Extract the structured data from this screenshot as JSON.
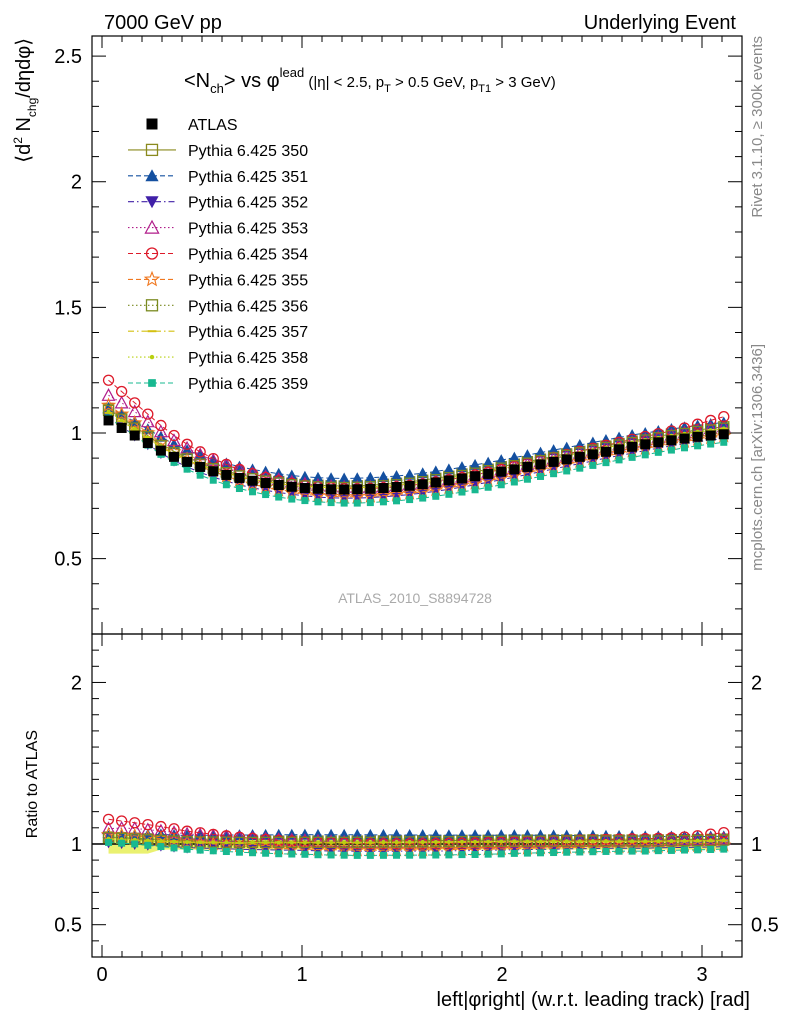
{
  "header": {
    "left": "7000 GeV pp",
    "right": "Underlying Event"
  },
  "side_labels": {
    "rivet": "Rivet 3.1.10, ≥ 300k events",
    "mcplots": "mcplots.cern.ch [arXiv:1306.3436]"
  },
  "chart_data": [
    {
      "type": "scatter",
      "title": "<N_ch> vs φ^lead (|η| < 2.5, p_T > 0.5 GeV, p_T1 > 3 GeV)",
      "ylabel": "⟨d² N_chg/dηdφ⟩",
      "xlabel": "left|φright| (w.r.t. leading track) [rad]",
      "xlim": [
        -0.05,
        3.2
      ],
      "ylim": [
        0.2,
        2.58
      ],
      "yticks": [
        0.5,
        1,
        1.5,
        2,
        2.5
      ],
      "xticks": [
        0,
        1,
        2,
        3
      ],
      "watermark": "ATLAS_2010_S8894728",
      "legend_placement": "top-left",
      "x": [
        0.0327,
        0.0982,
        0.1636,
        0.2291,
        0.2945,
        0.36,
        0.4254,
        0.4909,
        0.5563,
        0.6218,
        0.6872,
        0.7527,
        0.8181,
        0.8836,
        0.949,
        1.0145,
        1.0799,
        1.1454,
        1.2108,
        1.2763,
        1.3417,
        1.4072,
        1.4726,
        1.5381,
        1.6035,
        1.669,
        1.7344,
        1.7999,
        1.8653,
        1.9308,
        1.9962,
        2.0617,
        2.1271,
        2.1926,
        2.258,
        2.3235,
        2.3889,
        2.4544,
        2.5198,
        2.5853,
        2.6507,
        2.7162,
        2.7816,
        2.8471,
        2.9125,
        2.978,
        3.0434,
        3.1089
      ],
      "series": [
        {
          "name": "ATLAS",
          "color": "#000000",
          "marker": "square-filled",
          "dash": "none",
          "values": [
            1.05,
            1.02,
            0.99,
            0.96,
            0.93,
            0.905,
            0.885,
            0.865,
            0.848,
            0.833,
            0.821,
            0.81,
            0.801,
            0.793,
            0.786,
            0.781,
            0.778,
            0.776,
            0.775,
            0.776,
            0.778,
            0.781,
            0.785,
            0.79,
            0.796,
            0.803,
            0.811,
            0.819,
            0.828,
            0.837,
            0.846,
            0.855,
            0.865,
            0.875,
            0.885,
            0.895,
            0.905,
            0.915,
            0.925,
            0.935,
            0.945,
            0.955,
            0.963,
            0.971,
            0.978,
            0.985,
            0.99,
            0.995
          ]
        },
        {
          "name": "Pythia 6.425 350",
          "color": "#8a8a1e",
          "marker": "square-open",
          "dash": "solid",
          "values": [
            1.095,
            1.06,
            1.025,
            0.99,
            0.955,
            0.927,
            0.903,
            0.882,
            0.864,
            0.848,
            0.835,
            0.824,
            0.815,
            0.807,
            0.8,
            0.795,
            0.792,
            0.79,
            0.789,
            0.79,
            0.792,
            0.796,
            0.8,
            0.806,
            0.812,
            0.82,
            0.828,
            0.837,
            0.846,
            0.856,
            0.866,
            0.876,
            0.886,
            0.896,
            0.907,
            0.917,
            0.927,
            0.938,
            0.948,
            0.958,
            0.968,
            0.978,
            0.987,
            0.996,
            1.004,
            1.012,
            1.018,
            1.025
          ]
        },
        {
          "name": "Pythia 6.425 351",
          "color": "#1450a0",
          "marker": "triangle-up-filled",
          "dash": "dashed",
          "values": [
            1.1,
            1.075,
            1.045,
            1.015,
            0.985,
            0.955,
            0.932,
            0.912,
            0.894,
            0.879,
            0.866,
            0.855,
            0.846,
            0.838,
            0.831,
            0.826,
            0.822,
            0.82,
            0.819,
            0.82,
            0.822,
            0.825,
            0.829,
            0.834,
            0.84,
            0.847,
            0.855,
            0.864,
            0.873,
            0.882,
            0.892,
            0.902,
            0.912,
            0.922,
            0.932,
            0.942,
            0.952,
            0.962,
            0.972,
            0.982,
            0.992,
            1.0,
            1.008,
            1.016,
            1.023,
            1.03,
            1.036,
            1.042
          ]
        },
        {
          "name": "Pythia 6.425 352",
          "color": "#4020a8",
          "marker": "triangle-down-filled",
          "dash": "dashdot",
          "values": [
            1.06,
            1.025,
            0.99,
            0.955,
            0.92,
            0.89,
            0.865,
            0.843,
            0.824,
            0.808,
            0.794,
            0.782,
            0.772,
            0.763,
            0.756,
            0.75,
            0.745,
            0.742,
            0.741,
            0.741,
            0.743,
            0.746,
            0.75,
            0.755,
            0.761,
            0.768,
            0.776,
            0.785,
            0.794,
            0.804,
            0.814,
            0.824,
            0.835,
            0.846,
            0.857,
            0.868,
            0.878,
            0.889,
            0.9,
            0.91,
            0.92,
            0.93,
            0.94,
            0.949,
            0.957,
            0.965,
            0.972,
            0.978
          ]
        },
        {
          "name": "Pythia 6.425 353",
          "color": "#b01c8a",
          "marker": "triangle-up-open",
          "dash": "dotted",
          "values": [
            1.15,
            1.12,
            1.085,
            1.045,
            1.005,
            0.97,
            0.94,
            0.914,
            0.891,
            0.871,
            0.854,
            0.839,
            0.826,
            0.815,
            0.806,
            0.798,
            0.792,
            0.788,
            0.785,
            0.784,
            0.785,
            0.787,
            0.791,
            0.796,
            0.801,
            0.808,
            0.816,
            0.825,
            0.834,
            0.844,
            0.854,
            0.865,
            0.876,
            0.887,
            0.898,
            0.909,
            0.92,
            0.931,
            0.942,
            0.953,
            0.963,
            0.973,
            0.983,
            0.992,
            1.001,
            1.01,
            1.018,
            1.025
          ]
        },
        {
          "name": "Pythia 6.425 354",
          "color": "#dd1a2a",
          "marker": "circle-open",
          "dash": "dashed",
          "values": [
            1.21,
            1.165,
            1.12,
            1.075,
            1.03,
            0.99,
            0.955,
            0.925,
            0.898,
            0.875,
            0.855,
            0.838,
            0.823,
            0.81,
            0.8,
            0.792,
            0.786,
            0.782,
            0.779,
            0.778,
            0.779,
            0.782,
            0.786,
            0.791,
            0.797,
            0.805,
            0.814,
            0.823,
            0.833,
            0.844,
            0.855,
            0.867,
            0.879,
            0.891,
            0.903,
            0.915,
            0.927,
            0.939,
            0.951,
            0.963,
            0.975,
            0.986,
            0.997,
            1.008,
            1.02,
            1.035,
            1.05,
            1.065
          ]
        },
        {
          "name": "Pythia 6.425 355",
          "color": "#f07820",
          "marker": "star-open",
          "dash": "dashed",
          "values": [
            1.11,
            1.075,
            1.04,
            1.0,
            0.96,
            0.925,
            0.895,
            0.87,
            0.848,
            0.828,
            0.811,
            0.796,
            0.783,
            0.772,
            0.763,
            0.756,
            0.751,
            0.748,
            0.746,
            0.746,
            0.748,
            0.751,
            0.755,
            0.76,
            0.766,
            0.774,
            0.782,
            0.791,
            0.8,
            0.81,
            0.82,
            0.831,
            0.842,
            0.853,
            0.864,
            0.875,
            0.886,
            0.897,
            0.908,
            0.918,
            0.928,
            0.938,
            0.948,
            0.957,
            0.966,
            0.974,
            0.981,
            0.988
          ]
        },
        {
          "name": "Pythia 6.425 356",
          "color": "#7a8a20",
          "marker": "square-open",
          "dash": "dotted",
          "values": [
            1.09,
            1.055,
            1.02,
            0.985,
            0.95,
            0.921,
            0.897,
            0.876,
            0.858,
            0.842,
            0.829,
            0.818,
            0.809,
            0.801,
            0.794,
            0.789,
            0.786,
            0.784,
            0.783,
            0.784,
            0.786,
            0.79,
            0.794,
            0.8,
            0.806,
            0.814,
            0.822,
            0.831,
            0.84,
            0.85,
            0.86,
            0.87,
            0.88,
            0.89,
            0.901,
            0.911,
            0.921,
            0.932,
            0.942,
            0.952,
            0.962,
            0.972,
            0.981,
            0.99,
            0.998,
            1.006,
            1.012,
            1.019
          ]
        },
        {
          "name": "Pythia 6.425 357",
          "color": "#d4c010",
          "marker": "tick",
          "dash": "dashdot",
          "values": [
            1.08,
            1.047,
            1.013,
            0.978,
            0.944,
            0.916,
            0.893,
            0.872,
            0.855,
            0.839,
            0.826,
            0.816,
            0.807,
            0.799,
            0.792,
            0.787,
            0.784,
            0.782,
            0.781,
            0.782,
            0.784,
            0.788,
            0.792,
            0.798,
            0.804,
            0.812,
            0.82,
            0.829,
            0.838,
            0.848,
            0.858,
            0.868,
            0.878,
            0.888,
            0.899,
            0.909,
            0.919,
            0.93,
            0.94,
            0.95,
            0.96,
            0.97,
            0.979,
            0.988,
            0.996,
            1.004,
            1.01,
            1.017
          ]
        },
        {
          "name": "Pythia 6.425 358",
          "color": "#b8d010",
          "marker": "dot",
          "dash": "dotted",
          "values": [
            1.085,
            1.05,
            1.016,
            0.981,
            0.947,
            0.919,
            0.895,
            0.874,
            0.857,
            0.841,
            0.828,
            0.817,
            0.808,
            0.8,
            0.793,
            0.788,
            0.785,
            0.783,
            0.782,
            0.783,
            0.785,
            0.789,
            0.793,
            0.799,
            0.805,
            0.813,
            0.821,
            0.83,
            0.839,
            0.849,
            0.859,
            0.869,
            0.879,
            0.889,
            0.9,
            0.91,
            0.92,
            0.931,
            0.941,
            0.951,
            0.961,
            0.971,
            0.98,
            0.989,
            0.997,
            1.005,
            1.011,
            1.018
          ]
        },
        {
          "name": "Pythia 6.425 359",
          "color": "#18b890",
          "marker": "square-filled-small",
          "dash": "dashed",
          "values": [
            1.06,
            1.025,
            0.99,
            0.952,
            0.915,
            0.883,
            0.856,
            0.832,
            0.812,
            0.794,
            0.779,
            0.766,
            0.755,
            0.745,
            0.737,
            0.731,
            0.726,
            0.723,
            0.721,
            0.721,
            0.723,
            0.726,
            0.73,
            0.735,
            0.741,
            0.748,
            0.756,
            0.765,
            0.774,
            0.784,
            0.794,
            0.805,
            0.816,
            0.827,
            0.838,
            0.849,
            0.86,
            0.871,
            0.882,
            0.893,
            0.903,
            0.913,
            0.923,
            0.932,
            0.941,
            0.949,
            0.956,
            0.963
          ]
        }
      ]
    },
    {
      "type": "scatter",
      "title": "",
      "ylabel": "Ratio to ATLAS",
      "xlabel": "left|φright| (w.r.t. leading track) [rad]",
      "xlim": [
        -0.05,
        3.2
      ],
      "ylim": [
        0.3,
        2.3
      ],
      "yticks": [
        0.5,
        1,
        2
      ],
      "xticks": [
        0,
        1,
        2,
        3
      ],
      "reference_line": 1,
      "band": {
        "color": "#e8f060",
        "inner_color": "#f4f8a0",
        "half_width_start": 0.06,
        "half_width": 0.035
      },
      "note": "ratio series = each model series divided by ATLAS values"
    }
  ]
}
